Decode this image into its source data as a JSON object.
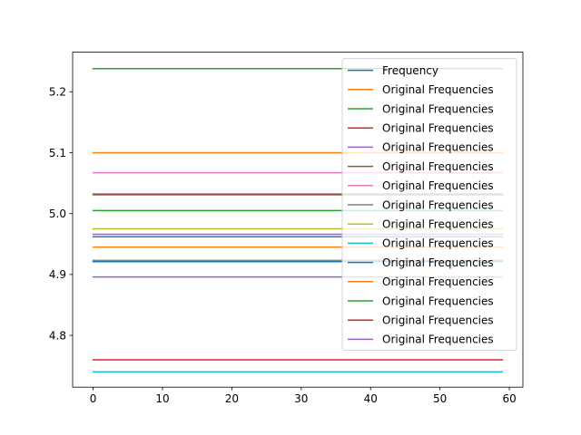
{
  "chart_data": {
    "type": "line",
    "title": "",
    "xlabel": "",
    "ylabel": "",
    "xlim": [
      -2.95,
      61.95
    ],
    "ylim": [
      4.715,
      5.265
    ],
    "xticks": [
      0,
      10,
      20,
      30,
      40,
      50,
      60
    ],
    "yticks": [
      4.8,
      4.9,
      5.0,
      5.1,
      5.2
    ],
    "ytick_labels": [
      "4.8",
      "4.9",
      "5.0",
      "5.1",
      "5.2"
    ],
    "x_start": 0,
    "x_end": 59,
    "grid": false,
    "legend_location": "upper right",
    "series": [
      {
        "name": "Frequency",
        "color": "#1f77b4",
        "value": 4.962
      },
      {
        "name": "Original Frequencies",
        "color": "#ff7f0e",
        "value": 5.1
      },
      {
        "name": "Original Frequencies",
        "color": "#2ca02c",
        "value": 5.238
      },
      {
        "name": "Original Frequencies",
        "color": "#d62728",
        "value": 5.031
      },
      {
        "name": "Original Frequencies",
        "color": "#9467bd",
        "value": 4.966
      },
      {
        "name": "Original Frequencies",
        "color": "#8c564b",
        "value": 5.032
      },
      {
        "name": "Original Frequencies",
        "color": "#e377c2",
        "value": 5.067
      },
      {
        "name": "Original Frequencies",
        "color": "#7f7f7f",
        "value": 4.923
      },
      {
        "name": "Original Frequencies",
        "color": "#bcbd22",
        "value": 4.975
      },
      {
        "name": "Original Frequencies",
        "color": "#17becf",
        "value": 4.74
      },
      {
        "name": "Original Frequencies",
        "color": "#1f77b4",
        "value": 4.921
      },
      {
        "name": "Original Frequencies",
        "color": "#ff7f0e",
        "value": 4.945
      },
      {
        "name": "Original Frequencies",
        "color": "#2ca02c",
        "value": 5.005
      },
      {
        "name": "Original Frequencies",
        "color": "#d62728",
        "value": 4.76
      },
      {
        "name": "Original Frequencies",
        "color": "#9467bd",
        "value": 4.896
      }
    ]
  }
}
